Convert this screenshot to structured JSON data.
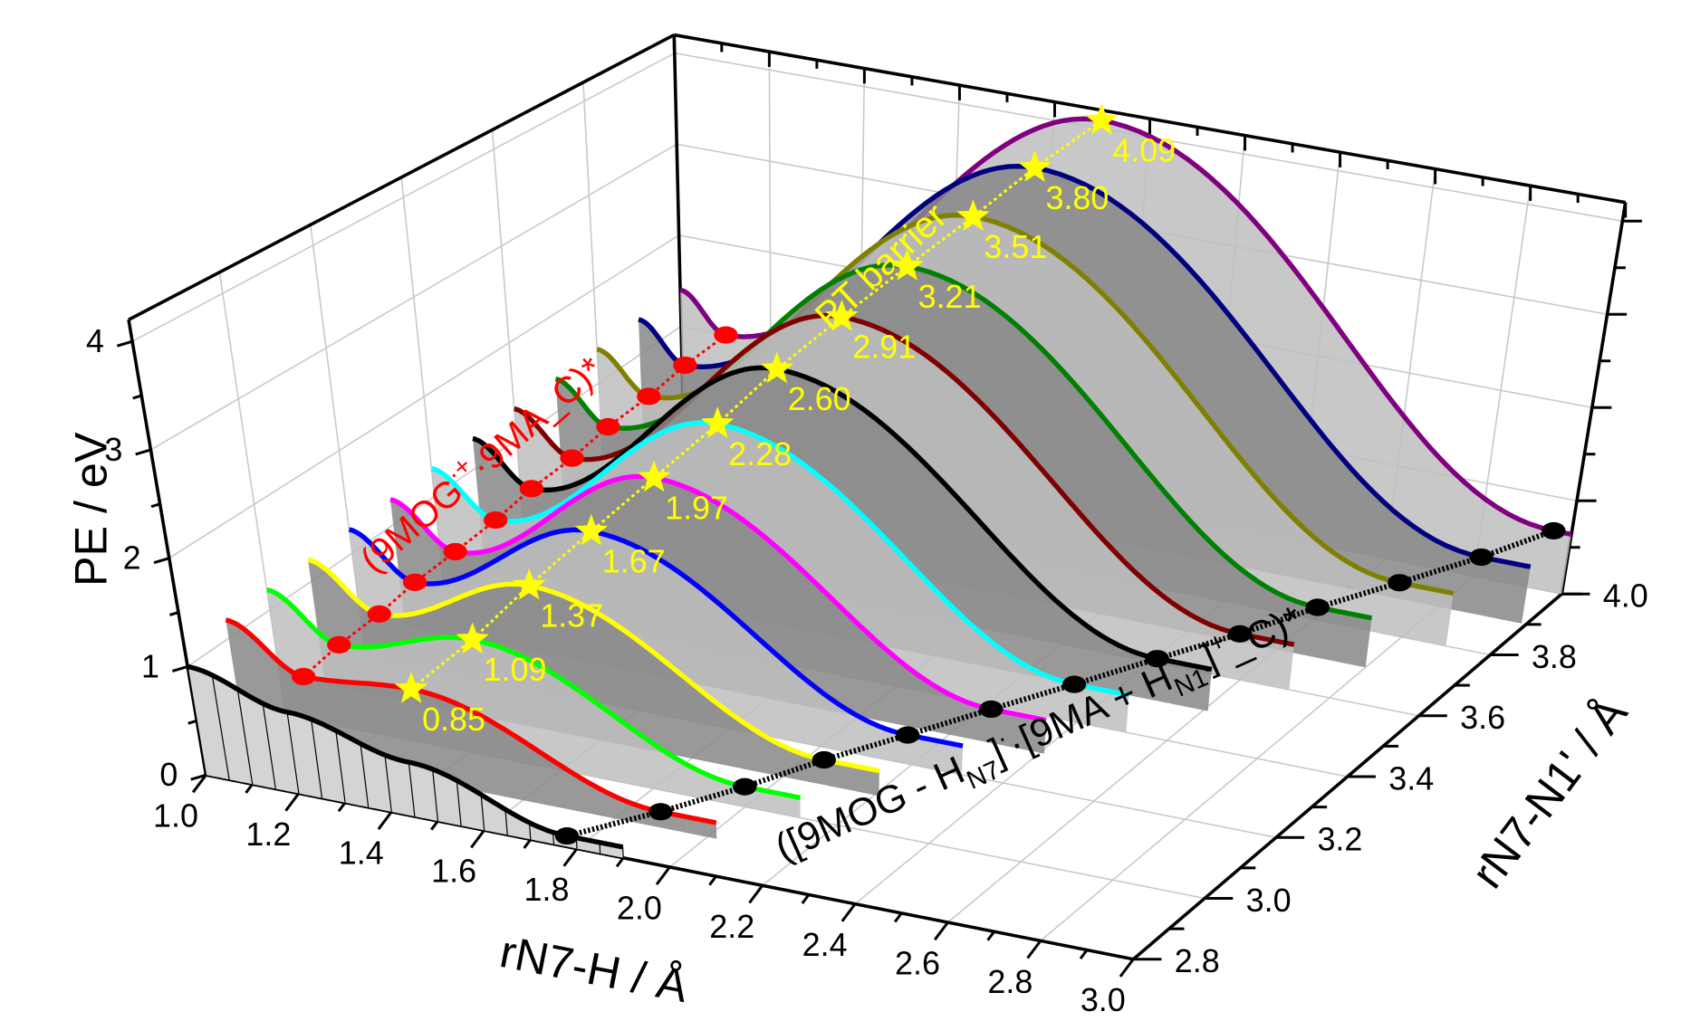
{
  "chart_data": {
    "type": "3d-waterfall-line",
    "title": "",
    "x_axis": {
      "label": "rN7-H / Å",
      "range": [
        1.0,
        3.0
      ],
      "ticks": [
        "1.0",
        "1.2",
        "1.4",
        "1.6",
        "1.8",
        "2.0",
        "2.2",
        "2.4",
        "2.6",
        "2.8",
        "3.0"
      ]
    },
    "y_axis": {
      "label": "rN7-N1' / Å",
      "range": [
        2.8,
        4.0
      ],
      "ticks": [
        "2.8",
        "3.0",
        "3.2",
        "3.4",
        "3.6",
        "3.8",
        "4.0"
      ]
    },
    "z_axis": {
      "label": "PE / eV",
      "range": [
        0,
        4
      ],
      "ticks": [
        "0",
        "1",
        "2",
        "3",
        "4"
      ]
    },
    "grid": true,
    "series": [
      {
        "rN7_N1": 2.8,
        "color": "#000000",
        "barrier": null,
        "barrier_label": "",
        "points": [
          [
            1.0,
            1.0
          ],
          [
            1.2,
            0.75
          ],
          [
            1.45,
            0.5
          ],
          [
            1.78,
            0.1
          ],
          [
            1.9,
            0.1
          ]
        ],
        "reactant_min": null,
        "product_min": [
          1.78,
          0.1
        ]
      },
      {
        "rN7_N1": 2.9,
        "color": "#ff0000",
        "barrier": 0.85,
        "barrier_label": "0.85",
        "points": [
          [
            1.0,
            1.17
          ],
          [
            1.15,
            0.77
          ],
          [
            1.38,
            0.85
          ],
          [
            1.9,
            0.15
          ],
          [
            2.02,
            0.15
          ]
        ],
        "reactant_min": [
          1.15,
          0.77
        ],
        "product_min": [
          1.9,
          0.15
        ]
      },
      {
        "rN7_N1": 3.0,
        "color": "#00ff00",
        "barrier": 1.09,
        "barrier_label": "1.09",
        "points": [
          [
            1.0,
            1.19
          ],
          [
            1.14,
            0.79
          ],
          [
            1.43,
            1.09
          ],
          [
            2.0,
            0.19
          ],
          [
            2.12,
            0.19
          ]
        ],
        "reactant_min": [
          1.14,
          0.79
        ],
        "product_min": [
          2.0,
          0.19
        ]
      },
      {
        "rN7_N1": 3.1,
        "color": "#ffff00",
        "barrier": 1.37,
        "barrier_label": "1.37",
        "points": [
          [
            1.0,
            1.21
          ],
          [
            1.14,
            0.81
          ],
          [
            1.47,
            1.37
          ],
          [
            2.09,
            0.24
          ],
          [
            2.21,
            0.24
          ]
        ],
        "reactant_min": [
          1.14,
          0.81
        ],
        "product_min": [
          2.09,
          0.24
        ]
      },
      {
        "rN7_N1": 3.2,
        "color": "#0000ff",
        "barrier": 1.67,
        "barrier_label": "1.67",
        "points": [
          [
            1.0,
            1.23
          ],
          [
            1.13,
            0.83
          ],
          [
            1.52,
            1.67
          ],
          [
            2.19,
            0.28
          ],
          [
            2.31,
            0.28
          ]
        ],
        "reactant_min": [
          1.13,
          0.83
        ],
        "product_min": [
          2.19,
          0.28
        ]
      },
      {
        "rN7_N1": 3.3,
        "color": "#ff00ff",
        "barrier": 1.97,
        "barrier_label": "1.97",
        "points": [
          [
            1.0,
            1.25
          ],
          [
            1.13,
            0.85
          ],
          [
            1.57,
            1.97
          ],
          [
            2.29,
            0.33
          ],
          [
            2.41,
            0.33
          ]
        ],
        "reactant_min": [
          1.13,
          0.85
        ],
        "product_min": [
          2.29,
          0.33
        ]
      },
      {
        "rN7_N1": 3.4,
        "color": "#00ffff",
        "barrier": 2.28,
        "barrier_label": "2.28",
        "points": [
          [
            1.0,
            1.28
          ],
          [
            1.13,
            0.88
          ],
          [
            1.62,
            2.28
          ],
          [
            2.39,
            0.37
          ],
          [
            2.51,
            0.37
          ]
        ],
        "reactant_min": [
          1.13,
          0.88
        ],
        "product_min": [
          2.39,
          0.37
        ]
      },
      {
        "rN7_N1": 3.5,
        "color": "#000000",
        "barrier": 2.6,
        "barrier_label": "2.60",
        "points": [
          [
            1.0,
            1.3
          ],
          [
            1.12,
            0.9
          ],
          [
            1.66,
            2.6
          ],
          [
            2.49,
            0.42
          ],
          [
            2.61,
            0.42
          ]
        ],
        "reactant_min": [
          1.12,
          0.9
        ],
        "product_min": [
          2.49,
          0.42
        ]
      },
      {
        "rN7_N1": 3.6,
        "color": "#800000",
        "barrier": 2.91,
        "barrier_label": "2.91",
        "points": [
          [
            1.0,
            1.32
          ],
          [
            1.12,
            0.92
          ],
          [
            1.71,
            2.91
          ],
          [
            2.59,
            0.46
          ],
          [
            2.71,
            0.46
          ]
        ],
        "reactant_min": [
          1.12,
          0.92
        ],
        "product_min": [
          2.59,
          0.46
        ]
      },
      {
        "rN7_N1": 3.7,
        "color": "#008000",
        "barrier": 3.21,
        "barrier_label": "3.21",
        "points": [
          [
            1.0,
            1.34
          ],
          [
            1.11,
            0.94
          ],
          [
            1.76,
            3.21
          ],
          [
            2.68,
            0.51
          ],
          [
            2.8,
            0.51
          ]
        ],
        "reactant_min": [
          1.11,
          0.94
        ],
        "product_min": [
          2.68,
          0.51
        ]
      },
      {
        "rN7_N1": 3.8,
        "color": "#808000",
        "barrier": 3.51,
        "barrier_label": "3.51",
        "points": [
          [
            1.0,
            1.36
          ],
          [
            1.11,
            0.96
          ],
          [
            1.81,
            3.51
          ],
          [
            2.78,
            0.55
          ],
          [
            2.9,
            0.55
          ]
        ],
        "reactant_min": [
          1.11,
          0.96
        ],
        "product_min": [
          2.78,
          0.55
        ]
      },
      {
        "rN7_N1": 3.9,
        "color": "#000080",
        "barrier": 3.8,
        "barrier_label": "3.80",
        "points": [
          [
            1.0,
            1.38
          ],
          [
            1.1,
            0.98
          ],
          [
            1.85,
            3.8
          ],
          [
            2.88,
            0.6
          ],
          [
            2.99,
            0.6
          ]
        ],
        "reactant_min": [
          1.1,
          0.98
        ],
        "product_min": [
          2.88,
          0.6
        ]
      },
      {
        "rN7_N1": 4.0,
        "color": "#800080",
        "barrier": 4.09,
        "barrier_label": "4.09",
        "points": [
          [
            1.0,
            1.4
          ],
          [
            1.1,
            1.0
          ],
          [
            1.9,
            4.09
          ],
          [
            2.96,
            0.64
          ],
          [
            3.0,
            0.64
          ]
        ],
        "reactant_min": [
          1.1,
          1.0
        ],
        "product_min": [
          2.96,
          0.64
        ]
      }
    ],
    "annotations": {
      "reactant": {
        "pre": "(9MOG",
        "sup": "·+",
        "post": "·9MA_C)*",
        "color": "#ff0000"
      },
      "barrier": {
        "text": "PT barrier",
        "color": "#ffff00"
      },
      "product": {
        "p1": "([9MOG - H",
        "sub1": "N7",
        "p2": "]",
        "sup1": "·",
        "p3": "·[9MA + H",
        "sub2": "N1'",
        "p4": "]",
        "sup2": "+",
        "p5": "_C)*",
        "color": "#000000"
      }
    },
    "marker_colors": {
      "reactant_min": "#ff0000",
      "barrier": "#ffff00",
      "product_min": "#000000"
    }
  }
}
